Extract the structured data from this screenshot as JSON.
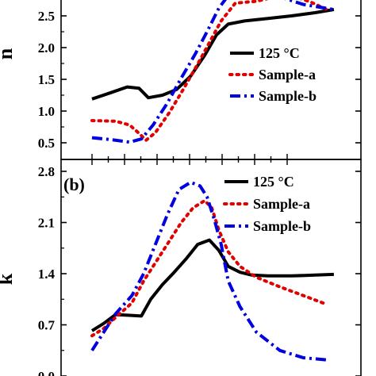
{
  "chart_data": [
    {
      "type": "line",
      "panel_label": "",
      "ylabel": "n",
      "xlabel": "",
      "xlim": [
        0,
        10
      ],
      "ylim": [
        0.3,
        2.87
      ],
      "yticks": [
        "0.5",
        "1.0",
        "1.5",
        "2.0",
        "2.5"
      ],
      "ytick_values": [
        0.5,
        1.0,
        1.5,
        2.0,
        2.5
      ],
      "legend": "right",
      "series": [
        {
          "name": "125 °C",
          "color": "#000000",
          "style": "solid",
          "x": [
            0.0,
            0.8,
            1.5,
            2.0,
            2.4,
            3.0,
            3.6,
            4.2,
            4.8,
            5.3,
            5.8,
            6.5,
            7.5,
            8.5,
            9.5,
            10.3
          ],
          "y": [
            1.19,
            1.29,
            1.38,
            1.36,
            1.21,
            1.25,
            1.34,
            1.55,
            1.88,
            2.2,
            2.37,
            2.42,
            2.46,
            2.5,
            2.55,
            2.6
          ]
        },
        {
          "name": "Sample-a",
          "color": "#e00000",
          "style": "dotted",
          "x": [
            0.0,
            1.0,
            1.6,
            2.0,
            2.3,
            2.7,
            3.3,
            3.9,
            4.5,
            5.0,
            5.5,
            6.1,
            7.0,
            7.8,
            8.5,
            9.3,
            10.0
          ],
          "y": [
            0.85,
            0.84,
            0.78,
            0.65,
            0.54,
            0.66,
            0.98,
            1.35,
            1.74,
            2.08,
            2.42,
            2.7,
            2.73,
            2.8,
            2.82,
            2.72,
            2.6
          ]
        },
        {
          "name": "Sample-b",
          "color": "#0000e0",
          "style": "dashdot",
          "x": [
            0.0,
            0.8,
            1.6,
            2.1,
            2.6,
            3.2,
            3.8,
            4.4,
            4.9,
            5.4,
            5.9,
            6.3,
            7.2,
            8.0,
            9.0,
            10.3
          ],
          "y": [
            0.58,
            0.55,
            0.51,
            0.56,
            0.78,
            1.12,
            1.52,
            1.9,
            2.25,
            2.62,
            2.87,
            2.87,
            2.87,
            2.8,
            2.68,
            2.6
          ]
        }
      ]
    },
    {
      "type": "line",
      "panel_label": "(b)",
      "ylabel": "k",
      "xlabel": "",
      "xlim": [
        0,
        10
      ],
      "ylim": [
        0.0,
        2.95
      ],
      "yticks": [
        "0.0",
        "0.7",
        "1.4",
        "2.1",
        "2.8"
      ],
      "ytick_values": [
        0.0,
        0.7,
        1.4,
        2.1,
        2.8
      ],
      "legend": "top-right",
      "series": [
        {
          "name": "125 °C",
          "color": "#000000",
          "style": "solid",
          "x": [
            0.0,
            0.5,
            1.0,
            1.6,
            2.1,
            2.5,
            3.0,
            3.5,
            4.0,
            4.5,
            5.0,
            5.4,
            5.8,
            6.3,
            6.8,
            7.5,
            8.5,
            9.5,
            10.3
          ],
          "y": [
            0.62,
            0.72,
            0.84,
            0.83,
            0.82,
            1.05,
            1.25,
            1.42,
            1.6,
            1.8,
            1.86,
            1.72,
            1.5,
            1.42,
            1.38,
            1.37,
            1.37,
            1.38,
            1.39
          ]
        },
        {
          "name": "Sample-a",
          "color": "#e00000",
          "style": "dotted",
          "x": [
            0.0,
            0.5,
            1.0,
            1.7,
            2.2,
            2.8,
            3.3,
            3.8,
            4.3,
            4.8,
            5.1,
            5.4,
            5.8,
            6.3,
            7.0,
            8.0,
            9.0,
            10.0
          ],
          "y": [
            0.55,
            0.65,
            0.8,
            1.0,
            1.3,
            1.6,
            1.85,
            2.1,
            2.3,
            2.4,
            2.3,
            2.0,
            1.7,
            1.5,
            1.35,
            1.22,
            1.1,
            0.98
          ]
        },
        {
          "name": "Sample-b",
          "color": "#0000e0",
          "style": "dashdot",
          "x": [
            0.0,
            0.5,
            1.0,
            1.7,
            2.2,
            2.7,
            3.2,
            3.7,
            4.2,
            4.6,
            4.9,
            5.2,
            5.5,
            5.8,
            6.3,
            7.0,
            8.0,
            9.0,
            10.0
          ],
          "y": [
            0.35,
            0.6,
            0.85,
            1.1,
            1.4,
            1.8,
            2.2,
            2.55,
            2.65,
            2.6,
            2.45,
            2.15,
            1.8,
            1.3,
            0.95,
            0.6,
            0.35,
            0.25,
            0.22
          ]
        }
      ]
    }
  ]
}
